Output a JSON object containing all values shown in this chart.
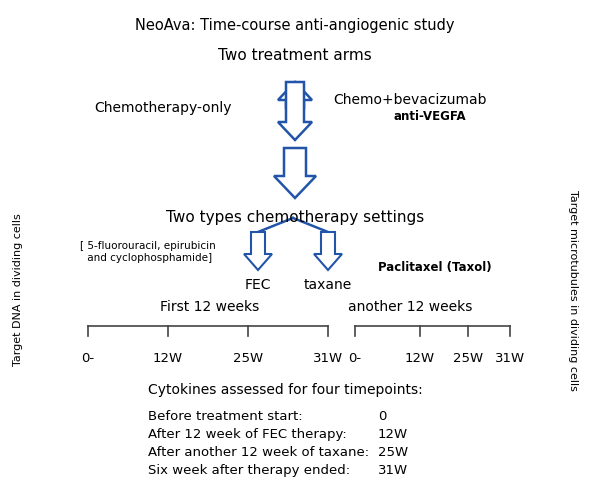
{
  "title": "NeoAva: Time-course anti-angiogenic study",
  "background_color": "#ffffff",
  "arrow_color": "#2255aa",
  "text_color": "#000000",
  "fig_width": 5.91,
  "fig_height": 4.96,
  "two_treatment_arms": "Two treatment arms",
  "chemo_only": "Chemotherapy-only",
  "chemo_bev": "Chemo+bevacizumab",
  "anti_vegfa": "anti-VEGFA",
  "two_types": "Two types chemotherapy settings",
  "fec_label": "[ 5-fluorouracil, epirubicin\n and cyclophosphamide]",
  "fec": "FEC",
  "taxane": "taxane",
  "paclitaxel": "Paclitaxel (Taxol)",
  "first_12": "First 12 weeks",
  "another_12": "another 12 weeks",
  "timepoints_left": [
    "0-",
    "12W",
    "25W",
    "31W"
  ],
  "timepoints_right": [
    "0-",
    "12W",
    "25W",
    "31W"
  ],
  "left_rotated_text": "Target DNA in dividing cells",
  "right_rotated_text": "Target microtubules in dividing cells",
  "cytokines_title": "Cytokines assessed for four timepoints:",
  "table_labels": [
    "Before treatment start:",
    "After 12 week of FEC therapy:",
    "After another 12 week of taxane:",
    "Six week after therapy ended:"
  ],
  "table_values": [
    "0",
    "12W",
    "25W",
    "31W"
  ]
}
